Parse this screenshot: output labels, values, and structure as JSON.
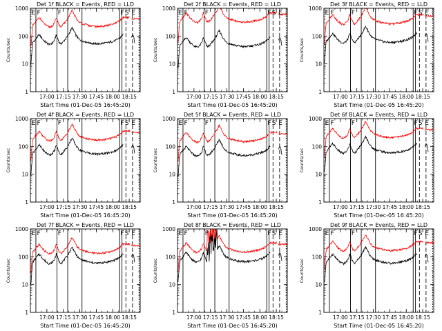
{
  "page": {
    "background": "#ffffff"
  },
  "colors": {
    "events": "#000000",
    "lld": "#ff0000",
    "axis": "#000000"
  },
  "x_axis": {
    "label": "Start Time (01-Dec-05 16:45:20)",
    "ticks_min": [
      15,
      30,
      45,
      60,
      75,
      90
    ],
    "tick_labels": [
      "17:00",
      "17:15",
      "17:30",
      "17:45",
      "18:00",
      "18:15"
    ],
    "range_min": [
      0,
      100
    ]
  },
  "y_axis": {
    "label": "Counts/sec",
    "scale": "log",
    "range": [
      1,
      1000
    ],
    "ticks": [
      "1",
      "10",
      "100",
      "1000"
    ]
  },
  "chart_data": [
    {
      "type": "line",
      "title": "Det 1f BLACK = Events, RED = LLD",
      "events_shift": 0,
      "lld_offset": 0.62,
      "gap_start": 84.5,
      "spike": null,
      "solid_lines": [
        5,
        24.2,
        34,
        47,
        81.3,
        83.4
      ],
      "dashed_lines": [
        87,
        93
      ],
      "dotted_lines": [
        99
      ],
      "markers": [
        {
          "text": "E",
          "x": 1
        },
        {
          "text": "F",
          "x": 6
        },
        {
          "text": "F",
          "x": 25
        },
        {
          "text": "F",
          "x": 82
        },
        {
          "text": "S",
          "x": 86
        },
        {
          "text": "E",
          "x": 92
        }
      ]
    },
    {
      "type": "line",
      "title": "Det 2f BLACK = Events, RED = LLD",
      "events_shift": -0.1,
      "lld_offset": 0.78,
      "gap_start": 84.5,
      "spike": null,
      "solid_lines": [
        5,
        24.2,
        34,
        47,
        81.3,
        83.4
      ],
      "dashed_lines": [
        87,
        93
      ],
      "dotted_lines": [
        99
      ],
      "markers": [
        {
          "text": "E",
          "x": 1
        },
        {
          "text": "F",
          "x": 6
        },
        {
          "text": "F",
          "x": 25
        },
        {
          "text": "F",
          "x": 82
        },
        {
          "text": "S",
          "x": 86
        },
        {
          "text": "E",
          "x": 92
        }
      ]
    },
    {
      "type": "line",
      "title": "Det 3f BLACK = Events, RED = LLD",
      "events_shift": 0.05,
      "lld_offset": 0.72,
      "gap_start": 84.5,
      "spike": null,
      "solid_lines": [
        5,
        24.2,
        34,
        47,
        81.3,
        83.4
      ],
      "dashed_lines": [
        87,
        93
      ],
      "dotted_lines": [
        99
      ],
      "markers": [
        {
          "text": "E",
          "x": 1
        },
        {
          "text": "F",
          "x": 6
        },
        {
          "text": "F",
          "x": 25
        },
        {
          "text": "F",
          "x": 82
        },
        {
          "text": "S",
          "x": 86
        },
        {
          "text": "E",
          "x": 92
        }
      ]
    },
    {
      "type": "line",
      "title": "Det 4f BLACK = Events, RED = LLD",
      "events_shift": 0,
      "lld_offset": 0.5,
      "gap_start": 84.5,
      "spike": null,
      "solid_lines": [
        5,
        24.2,
        34,
        47,
        81.3,
        83.4
      ],
      "dashed_lines": [
        87,
        93
      ],
      "dotted_lines": [
        99
      ],
      "markers": [
        {
          "text": "E",
          "x": 1
        },
        {
          "text": "F",
          "x": 6
        },
        {
          "text": "F",
          "x": 25
        },
        {
          "text": "F",
          "x": 82
        },
        {
          "text": "S",
          "x": 86
        },
        {
          "text": "E",
          "x": 92
        }
      ]
    },
    {
      "type": "line",
      "title": "Det 5f BLACK = Events, RED = LLD",
      "events_shift": -0.05,
      "lld_offset": 0.45,
      "gap_start": 84.5,
      "spike": null,
      "solid_lines": [
        5,
        24.2,
        34,
        47,
        81.3,
        83.4
      ],
      "dashed_lines": [
        87,
        93
      ],
      "dotted_lines": [
        99
      ],
      "markers": [
        {
          "text": "E",
          "x": 1
        },
        {
          "text": "F",
          "x": 6
        },
        {
          "text": "F",
          "x": 25
        },
        {
          "text": "F",
          "x": 82
        },
        {
          "text": "S",
          "x": 86
        },
        {
          "text": "E",
          "x": 92
        }
      ]
    },
    {
      "type": "line",
      "title": "Det 6f BLACK = Events, RED = LLD",
      "events_shift": 0.05,
      "lld_offset": 0.6,
      "gap_start": 84.5,
      "spike": null,
      "solid_lines": [
        5,
        24.2,
        34,
        47,
        81.3,
        83.4
      ],
      "dashed_lines": [
        87,
        93
      ],
      "dotted_lines": [
        99
      ],
      "markers": [
        {
          "text": "E",
          "x": 1
        },
        {
          "text": "F",
          "x": 6
        },
        {
          "text": "F",
          "x": 25
        },
        {
          "text": "F",
          "x": 82
        },
        {
          "text": "S",
          "x": 86
        },
        {
          "text": "E",
          "x": 92
        }
      ]
    },
    {
      "type": "line",
      "title": "Det 7f BLACK = Events, RED = LLD",
      "events_shift": 0.05,
      "lld_offset": 0.4,
      "gap_start": 84.5,
      "spike": null,
      "solid_lines": [
        5,
        24.2,
        34,
        47,
        81.3,
        83.4
      ],
      "dashed_lines": [
        87,
        93
      ],
      "dotted_lines": [
        99
      ],
      "markers": [
        {
          "text": "E",
          "x": 1
        },
        {
          "text": "F",
          "x": 6
        },
        {
          "text": "F",
          "x": 25
        },
        {
          "text": "F",
          "x": 82
        },
        {
          "text": "S",
          "x": 86
        },
        {
          "text": "E",
          "x": 92
        }
      ]
    },
    {
      "type": "line",
      "title": "Det 8f BLACK = Events, RED = LLD",
      "events_shift": 0.1,
      "lld_offset": 0.45,
      "gap_start": 84.5,
      "spike": {
        "x1": 27,
        "x2": 36
      },
      "solid_lines": [
        5,
        24.2,
        34,
        47,
        81.3,
        83.4
      ],
      "dashed_lines": [
        87,
        93
      ],
      "dotted_lines": [
        99
      ],
      "markers": [
        {
          "text": "E",
          "x": 1
        },
        {
          "text": "F",
          "x": 6
        },
        {
          "text": "F",
          "x": 25
        },
        {
          "text": "F",
          "x": 82
        },
        {
          "text": "S",
          "x": 86
        },
        {
          "text": "E",
          "x": 92
        }
      ]
    },
    {
      "type": "line",
      "title": "Det 9f BLACK = Events, RED = LLD",
      "events_shift": 0.05,
      "lld_offset": 0.5,
      "gap_start": 84.5,
      "spike": null,
      "solid_lines": [
        5,
        24.2,
        34,
        47,
        81.3,
        83.4
      ],
      "dashed_lines": [
        87,
        93
      ],
      "dotted_lines": [
        99
      ],
      "markers": [
        {
          "text": "E",
          "x": 1
        },
        {
          "text": "F",
          "x": 6
        },
        {
          "text": "F",
          "x": 25
        },
        {
          "text": "F",
          "x": 82
        },
        {
          "text": "S",
          "x": 86
        },
        {
          "text": "E",
          "x": 92
        }
      ]
    }
  ],
  "base_profile": {
    "note_units": "time in minutes since start, log10 counts/sec",
    "x": [
      0.5,
      2,
      4,
      6,
      8,
      10,
      12,
      14,
      16,
      18,
      20,
      22,
      23.5,
      25,
      26.5,
      28,
      30,
      32,
      34,
      36,
      38,
      40,
      42,
      44,
      46,
      48,
      50,
      52,
      54,
      56,
      58,
      60,
      62,
      64,
      66,
      68,
      70,
      72,
      74,
      76,
      78,
      80,
      82,
      84
    ],
    "y": [
      1.0,
      1.75,
      1.85,
      1.95,
      2.05,
      1.95,
      1.85,
      1.78,
      1.72,
      1.7,
      1.75,
      1.85,
      2.05,
      1.9,
      1.75,
      1.72,
      1.8,
      1.9,
      2.0,
      2.15,
      2.3,
      2.15,
      2.0,
      1.9,
      1.85,
      1.82,
      1.8,
      1.78,
      1.75,
      1.74,
      1.73,
      1.72,
      1.72,
      1.73,
      1.74,
      1.75,
      1.76,
      1.78,
      1.8,
      1.82,
      1.85,
      1.9,
      1.95,
      2.05
    ],
    "tail_x": [
      92,
      93,
      94,
      95
    ],
    "tail_y": [
      1.95,
      2.05,
      2.0,
      1.75
    ]
  }
}
